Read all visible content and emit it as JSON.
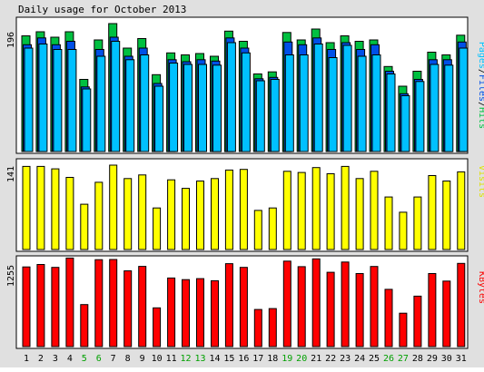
{
  "title": "Daily usage for October 2013",
  "colors": {
    "background": "#e0e0e0",
    "panel": "#ffffff",
    "hits": "#00c040",
    "files": "#0050e8",
    "pages": "#00c0ff",
    "visits": "#ffff00",
    "kbytes": "#ff0000",
    "weekday_label": "#000000",
    "weekend_label": "#00a000",
    "outline": "#000000"
  },
  "chart_data": [
    {
      "type": "bar",
      "panel": "top",
      "ymax_label": "196",
      "ymax": 196,
      "legend_labels": [
        "Pages",
        "/",
        "Files",
        "/",
        "Hits"
      ],
      "categories": [
        "1",
        "2",
        "3",
        "4",
        "5",
        "6",
        "7",
        "8",
        "9",
        "10",
        "11",
        "12",
        "13",
        "14",
        "15",
        "16",
        "17",
        "18",
        "19",
        "20",
        "21",
        "22",
        "23",
        "24",
        "25",
        "26",
        "27",
        "28",
        "29",
        "30",
        "31"
      ],
      "weekend_days": [
        "5",
        "6",
        "12",
        "13",
        "19",
        "20",
        "26",
        "27"
      ],
      "series": [
        {
          "name": "Hits",
          "values": [
            170,
            176,
            168,
            176,
            106,
            164,
            188,
            152,
            166,
            113,
            145,
            142,
            144,
            140,
            177,
            162,
            114,
            117,
            175,
            164,
            180,
            160,
            170,
            162,
            164,
            125,
            96,
            118,
            146,
            142,
            171
          ]
        },
        {
          "name": "Files",
          "values": [
            157,
            167,
            157,
            162,
            95,
            150,
            168,
            140,
            152,
            100,
            135,
            132,
            135,
            133,
            167,
            152,
            107,
            109,
            161,
            157,
            167,
            150,
            160,
            150,
            157,
            118,
            85,
            106,
            135,
            135,
            161
          ]
        },
        {
          "name": "Pages",
          "values": [
            152,
            158,
            150,
            150,
            92,
            140,
            162,
            135,
            142,
            96,
            130,
            128,
            128,
            127,
            160,
            145,
            104,
            106,
            142,
            142,
            158,
            138,
            156,
            140,
            142,
            114,
            82,
            103,
            128,
            127,
            152
          ]
        }
      ]
    },
    {
      "type": "bar",
      "panel": "middle",
      "ymax_label": "141",
      "ymax": 141,
      "legend_labels": [
        "Visits"
      ],
      "categories": [
        "1",
        "2",
        "3",
        "4",
        "5",
        "6",
        "7",
        "8",
        "9",
        "10",
        "11",
        "12",
        "13",
        "14",
        "15",
        "16",
        "17",
        "18",
        "19",
        "20",
        "21",
        "22",
        "23",
        "24",
        "25",
        "26",
        "27",
        "28",
        "29",
        "30",
        "31"
      ],
      "series": [
        {
          "name": "Visits",
          "values": [
            136,
            136,
            132,
            118,
            74,
            110,
            138,
            116,
            122,
            68,
            114,
            100,
            112,
            116,
            130,
            131,
            64,
            68,
            128,
            126,
            134,
            124,
            136,
            116,
            128,
            86,
            61,
            86,
            121,
            112,
            127
          ]
        }
      ]
    },
    {
      "type": "bar",
      "panel": "bottom",
      "ymax_label": "1255",
      "ymax": 1255,
      "legend_labels": [
        "KBytes"
      ],
      "categories": [
        "1",
        "2",
        "3",
        "4",
        "5",
        "6",
        "7",
        "8",
        "9",
        "10",
        "11",
        "12",
        "13",
        "14",
        "15",
        "16",
        "17",
        "18",
        "19",
        "20",
        "21",
        "22",
        "23",
        "24",
        "25",
        "26",
        "27",
        "28",
        "29",
        "30",
        "31"
      ],
      "series": [
        {
          "name": "KBytes",
          "values": [
            1160,
            1196,
            1153,
            1290,
            611,
            1265,
            1268,
            1103,
            1168,
            564,
            999,
            975,
            990,
            959,
            1207,
            1153,
            540,
            553,
            1245,
            1164,
            1277,
            1082,
            1231,
            1064,
            1166,
            833,
            486,
            735,
            1063,
            954,
            1212
          ]
        }
      ]
    }
  ]
}
